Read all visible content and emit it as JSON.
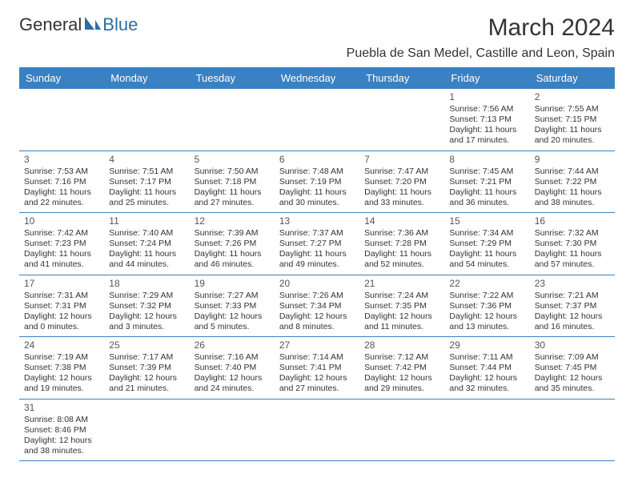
{
  "logo": {
    "part1": "General",
    "part2": "Blue"
  },
  "title": "March 2024",
  "location": "Puebla de San Medel, Castille and Leon, Spain",
  "colors": {
    "header_bg": "#3a81c3",
    "header_fg": "#ffffff",
    "border": "#3a81c3",
    "text": "#333333"
  },
  "weekdays": [
    "Sunday",
    "Monday",
    "Tuesday",
    "Wednesday",
    "Thursday",
    "Friday",
    "Saturday"
  ],
  "weeks": [
    [
      null,
      null,
      null,
      null,
      null,
      {
        "day": "1",
        "sunrise": "Sunrise: 7:56 AM",
        "sunset": "Sunset: 7:13 PM",
        "daylight": "Daylight: 11 hours and 17 minutes."
      },
      {
        "day": "2",
        "sunrise": "Sunrise: 7:55 AM",
        "sunset": "Sunset: 7:15 PM",
        "daylight": "Daylight: 11 hours and 20 minutes."
      }
    ],
    [
      {
        "day": "3",
        "sunrise": "Sunrise: 7:53 AM",
        "sunset": "Sunset: 7:16 PM",
        "daylight": "Daylight: 11 hours and 22 minutes."
      },
      {
        "day": "4",
        "sunrise": "Sunrise: 7:51 AM",
        "sunset": "Sunset: 7:17 PM",
        "daylight": "Daylight: 11 hours and 25 minutes."
      },
      {
        "day": "5",
        "sunrise": "Sunrise: 7:50 AM",
        "sunset": "Sunset: 7:18 PM",
        "daylight": "Daylight: 11 hours and 27 minutes."
      },
      {
        "day": "6",
        "sunrise": "Sunrise: 7:48 AM",
        "sunset": "Sunset: 7:19 PM",
        "daylight": "Daylight: 11 hours and 30 minutes."
      },
      {
        "day": "7",
        "sunrise": "Sunrise: 7:47 AM",
        "sunset": "Sunset: 7:20 PM",
        "daylight": "Daylight: 11 hours and 33 minutes."
      },
      {
        "day": "8",
        "sunrise": "Sunrise: 7:45 AM",
        "sunset": "Sunset: 7:21 PM",
        "daylight": "Daylight: 11 hours and 36 minutes."
      },
      {
        "day": "9",
        "sunrise": "Sunrise: 7:44 AM",
        "sunset": "Sunset: 7:22 PM",
        "daylight": "Daylight: 11 hours and 38 minutes."
      }
    ],
    [
      {
        "day": "10",
        "sunrise": "Sunrise: 7:42 AM",
        "sunset": "Sunset: 7:23 PM",
        "daylight": "Daylight: 11 hours and 41 minutes."
      },
      {
        "day": "11",
        "sunrise": "Sunrise: 7:40 AM",
        "sunset": "Sunset: 7:24 PM",
        "daylight": "Daylight: 11 hours and 44 minutes."
      },
      {
        "day": "12",
        "sunrise": "Sunrise: 7:39 AM",
        "sunset": "Sunset: 7:26 PM",
        "daylight": "Daylight: 11 hours and 46 minutes."
      },
      {
        "day": "13",
        "sunrise": "Sunrise: 7:37 AM",
        "sunset": "Sunset: 7:27 PM",
        "daylight": "Daylight: 11 hours and 49 minutes."
      },
      {
        "day": "14",
        "sunrise": "Sunrise: 7:36 AM",
        "sunset": "Sunset: 7:28 PM",
        "daylight": "Daylight: 11 hours and 52 minutes."
      },
      {
        "day": "15",
        "sunrise": "Sunrise: 7:34 AM",
        "sunset": "Sunset: 7:29 PM",
        "daylight": "Daylight: 11 hours and 54 minutes."
      },
      {
        "day": "16",
        "sunrise": "Sunrise: 7:32 AM",
        "sunset": "Sunset: 7:30 PM",
        "daylight": "Daylight: 11 hours and 57 minutes."
      }
    ],
    [
      {
        "day": "17",
        "sunrise": "Sunrise: 7:31 AM",
        "sunset": "Sunset: 7:31 PM",
        "daylight": "Daylight: 12 hours and 0 minutes."
      },
      {
        "day": "18",
        "sunrise": "Sunrise: 7:29 AM",
        "sunset": "Sunset: 7:32 PM",
        "daylight": "Daylight: 12 hours and 3 minutes."
      },
      {
        "day": "19",
        "sunrise": "Sunrise: 7:27 AM",
        "sunset": "Sunset: 7:33 PM",
        "daylight": "Daylight: 12 hours and 5 minutes."
      },
      {
        "day": "20",
        "sunrise": "Sunrise: 7:26 AM",
        "sunset": "Sunset: 7:34 PM",
        "daylight": "Daylight: 12 hours and 8 minutes."
      },
      {
        "day": "21",
        "sunrise": "Sunrise: 7:24 AM",
        "sunset": "Sunset: 7:35 PM",
        "daylight": "Daylight: 12 hours and 11 minutes."
      },
      {
        "day": "22",
        "sunrise": "Sunrise: 7:22 AM",
        "sunset": "Sunset: 7:36 PM",
        "daylight": "Daylight: 12 hours and 13 minutes."
      },
      {
        "day": "23",
        "sunrise": "Sunrise: 7:21 AM",
        "sunset": "Sunset: 7:37 PM",
        "daylight": "Daylight: 12 hours and 16 minutes."
      }
    ],
    [
      {
        "day": "24",
        "sunrise": "Sunrise: 7:19 AM",
        "sunset": "Sunset: 7:38 PM",
        "daylight": "Daylight: 12 hours and 19 minutes."
      },
      {
        "day": "25",
        "sunrise": "Sunrise: 7:17 AM",
        "sunset": "Sunset: 7:39 PM",
        "daylight": "Daylight: 12 hours and 21 minutes."
      },
      {
        "day": "26",
        "sunrise": "Sunrise: 7:16 AM",
        "sunset": "Sunset: 7:40 PM",
        "daylight": "Daylight: 12 hours and 24 minutes."
      },
      {
        "day": "27",
        "sunrise": "Sunrise: 7:14 AM",
        "sunset": "Sunset: 7:41 PM",
        "daylight": "Daylight: 12 hours and 27 minutes."
      },
      {
        "day": "28",
        "sunrise": "Sunrise: 7:12 AM",
        "sunset": "Sunset: 7:42 PM",
        "daylight": "Daylight: 12 hours and 29 minutes."
      },
      {
        "day": "29",
        "sunrise": "Sunrise: 7:11 AM",
        "sunset": "Sunset: 7:44 PM",
        "daylight": "Daylight: 12 hours and 32 minutes."
      },
      {
        "day": "30",
        "sunrise": "Sunrise: 7:09 AM",
        "sunset": "Sunset: 7:45 PM",
        "daylight": "Daylight: 12 hours and 35 minutes."
      }
    ],
    [
      {
        "day": "31",
        "sunrise": "Sunrise: 8:08 AM",
        "sunset": "Sunset: 8:46 PM",
        "daylight": "Daylight: 12 hours and 38 minutes."
      },
      null,
      null,
      null,
      null,
      null,
      null
    ]
  ]
}
